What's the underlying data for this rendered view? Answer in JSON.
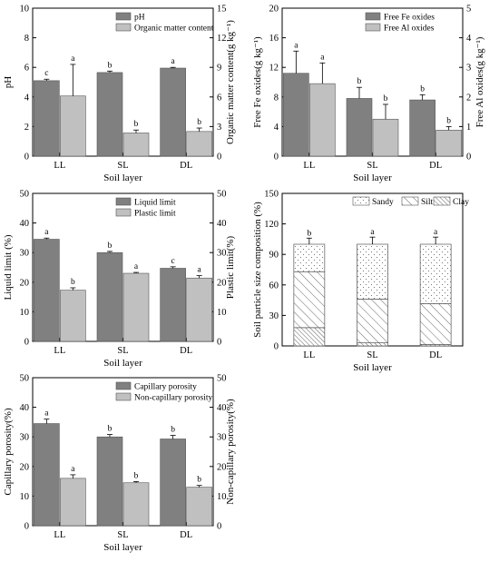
{
  "colors": {
    "dark": "#808080",
    "light": "#c0c0c0",
    "axis": "#000000"
  },
  "chart_data": [
    {
      "type": "bar",
      "categories": [
        "LL",
        "SL",
        "DL"
      ],
      "xlabel": "Soil layer",
      "ylabel": "pH",
      "y2label": "Organic matter content(g kg⁻¹)",
      "ylim": [
        0,
        10
      ],
      "yticks": [
        0,
        2,
        4,
        6,
        8,
        10
      ],
      "y2lim": [
        0,
        15
      ],
      "y2ticks": [
        0,
        3,
        6,
        9,
        12,
        15
      ],
      "legend_placement": "top-right",
      "series": [
        {
          "name": "pH",
          "axis": "left",
          "values": [
            5.1,
            5.65,
            5.95
          ],
          "errors": [
            0.1,
            0.1,
            0.05
          ],
          "letters": [
            "c",
            "b",
            "a"
          ]
        },
        {
          "name": "Organic matter content",
          "axis": "right",
          "values": [
            6.1,
            2.35,
            2.5
          ],
          "errors": [
            3.2,
            0.3,
            0.35
          ],
          "letters": [
            "a",
            "b",
            "b"
          ]
        }
      ]
    },
    {
      "type": "bar",
      "categories": [
        "LL",
        "SL",
        "DL"
      ],
      "xlabel": "Soil layer",
      "ylabel": "Free Fe oxides(g kg⁻¹)",
      "y2label": "Free Al oxides(g kg⁻¹)",
      "ylim": [
        0,
        20
      ],
      "yticks": [
        0,
        4,
        8,
        12,
        16,
        20
      ],
      "y2lim": [
        0,
        5
      ],
      "y2ticks": [
        0,
        1,
        2,
        3,
        4,
        5
      ],
      "legend_placement": "top-right",
      "series": [
        {
          "name": "Free Fe oxides",
          "axis": "left",
          "values": [
            11.2,
            7.8,
            7.6
          ],
          "errors": [
            3.0,
            1.5,
            0.7
          ],
          "letters": [
            "a",
            "b",
            "b"
          ]
        },
        {
          "name": "Free Al oxides",
          "axis": "right",
          "values": [
            2.45,
            1.25,
            0.88
          ],
          "errors": [
            0.7,
            0.5,
            0.12
          ],
          "letters": [
            "a",
            "b",
            "b"
          ]
        }
      ]
    },
    {
      "type": "bar",
      "categories": [
        "LL",
        "SL",
        "DL"
      ],
      "xlabel": "Soil layer",
      "ylabel": "Liquid limit (%)",
      "y2label": "Plastic limit(%)",
      "ylim": [
        0,
        50
      ],
      "yticks": [
        0,
        10,
        20,
        30,
        40,
        50
      ],
      "y2lim": [
        0,
        50
      ],
      "y2ticks": [
        0,
        10,
        20,
        30,
        40,
        50
      ],
      "legend_placement": "top-right",
      "series": [
        {
          "name": "Liquid limit",
          "axis": "left",
          "values": [
            34.5,
            30.0,
            24.7
          ],
          "errors": [
            0.4,
            0.4,
            0.5
          ],
          "letters": [
            "a",
            "b",
            "c"
          ]
        },
        {
          "name": "Plastic limit",
          "axis": "right",
          "values": [
            17.3,
            23.0,
            21.4
          ],
          "errors": [
            0.8,
            0.3,
            0.8
          ],
          "letters": [
            "b",
            "a",
            "a"
          ]
        }
      ]
    },
    {
      "type": "stacked-bar",
      "categories": [
        "LL",
        "SL",
        "DL"
      ],
      "xlabel": "Soil layer",
      "ylabel": "Soil particle size composition (%)",
      "ylim": [
        0,
        150
      ],
      "yticks": [
        0,
        30,
        60,
        90,
        120,
        150
      ],
      "legend_placement": "top",
      "series": [
        {
          "name": "Clay",
          "pattern": "dense",
          "values": [
            18,
            3,
            1.5
          ],
          "errors": [
            4,
            1.5,
            0.8
          ],
          "letters": [
            "a",
            "b",
            "b"
          ]
        },
        {
          "name": "Silt",
          "pattern": "hatch",
          "values": [
            55,
            43,
            40
          ],
          "errors": [
            4,
            6,
            7
          ],
          "letters": [
            "a",
            "b",
            "b"
          ]
        },
        {
          "name": "Sandy",
          "pattern": "dots",
          "values": [
            27,
            54,
            58.5
          ],
          "errors": [
            6,
            7,
            7
          ],
          "letters": [
            "b",
            "a",
            "a"
          ]
        }
      ]
    },
    {
      "type": "bar",
      "categories": [
        "LL",
        "SL",
        "DL"
      ],
      "xlabel": "Soil layer",
      "ylabel": "Capillary porosity(%)",
      "y2label": "Non-capillary porosity(%)",
      "ylim": [
        0,
        50
      ],
      "yticks": [
        0,
        10,
        20,
        30,
        40,
        50
      ],
      "y2lim": [
        0,
        50
      ],
      "y2ticks": [
        0,
        10,
        20,
        30,
        40,
        50
      ],
      "legend_placement": "top-right",
      "series": [
        {
          "name": "Capillary porosity",
          "axis": "left",
          "values": [
            34.5,
            30.0,
            29.3
          ],
          "errors": [
            1.5,
            0.8,
            1.2
          ],
          "letters": [
            "a",
            "b",
            "b"
          ]
        },
        {
          "name": "Non-capillary porosity",
          "axis": "right",
          "values": [
            16.0,
            14.5,
            13.0
          ],
          "errors": [
            1.2,
            0.4,
            0.6
          ],
          "letters": [
            "a",
            "b",
            "b"
          ]
        }
      ]
    }
  ]
}
